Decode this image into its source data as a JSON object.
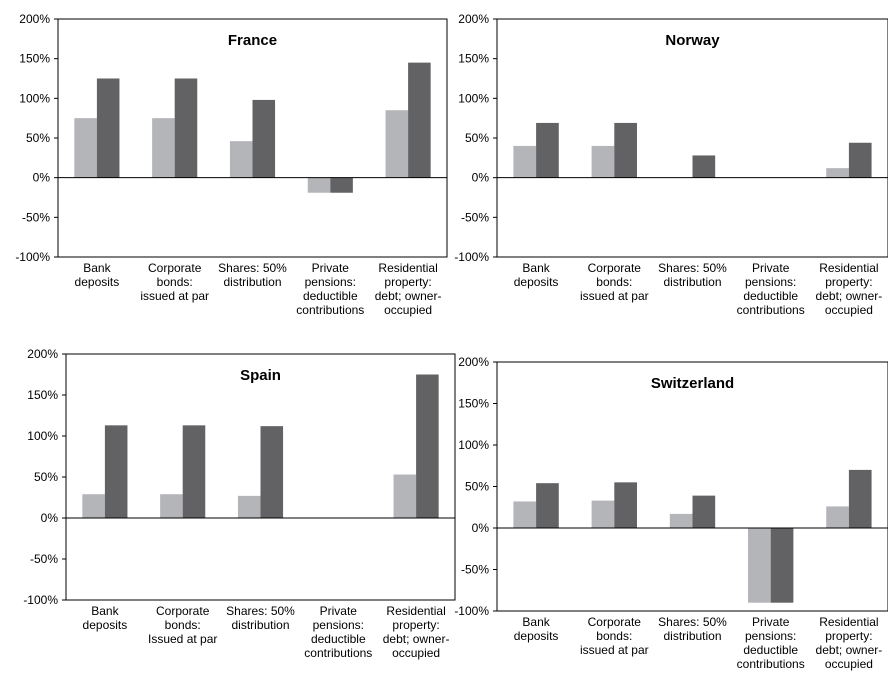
{
  "legend": [],
  "colors": {
    "series_a": "#b4b5b9",
    "series_b": "#626264",
    "axis": "#000000"
  },
  "chart_data": [
    {
      "type": "bar",
      "title": "France",
      "categories": [
        [
          "Bank",
          "deposits"
        ],
        [
          "Corporate",
          "bonds:",
          "issued at par"
        ],
        [
          "Shares: 50%",
          "distribution"
        ],
        [
          "Private",
          "pensions:",
          "deductible",
          "contributions"
        ],
        [
          "Residential",
          "property:",
          "debt; owner-",
          "occupied"
        ]
      ],
      "series": [
        {
          "values": [
            75,
            75,
            46,
            -19,
            85
          ]
        },
        {
          "values": [
            125,
            125,
            98,
            -19,
            145
          ]
        }
      ],
      "ylim": [
        -100,
        200
      ],
      "yticks": [
        "-100%",
        "-50%",
        "0%",
        "50%",
        "100%",
        "150%",
        "200%"
      ],
      "xlabel": "",
      "ylabel": "",
      "grid": false
    },
    {
      "type": "bar",
      "title": "Norway",
      "categories": [
        [
          "Bank",
          "deposits"
        ],
        [
          "Corporate",
          "bonds:",
          "issued at par"
        ],
        [
          "Shares: 50%",
          "distribution"
        ],
        [
          "Private",
          "pensions:",
          "deductible",
          "contributions"
        ],
        [
          "Residential",
          "property:",
          "debt; owner-",
          "occupied"
        ]
      ],
      "series": [
        {
          "values": [
            40,
            40,
            0,
            0,
            12
          ]
        },
        {
          "values": [
            69,
            69,
            28,
            0,
            44
          ]
        }
      ],
      "ylim": [
        -100,
        200
      ],
      "yticks": [
        "-100%",
        "-50%",
        "0%",
        "50%",
        "100%",
        "150%",
        "200%"
      ],
      "xlabel": "",
      "ylabel": "",
      "grid": false
    },
    {
      "type": "bar",
      "title": "Spain",
      "categories": [
        [
          "Bank",
          "deposits"
        ],
        [
          "Corporate",
          "bonds:",
          "Issued at par"
        ],
        [
          "Shares: 50%",
          "distribution"
        ],
        [
          "Private",
          "pensions:",
          "deductible",
          "contributions"
        ],
        [
          "Residential",
          "property:",
          "debt; owner-",
          "occupied"
        ]
      ],
      "series": [
        {
          "values": [
            29,
            29,
            27,
            0,
            53
          ]
        },
        {
          "values": [
            113,
            113,
            112,
            0,
            175
          ]
        }
      ],
      "ylim": [
        -100,
        200
      ],
      "yticks": [
        "-100%",
        "-50%",
        "0%",
        "50%",
        "100%",
        "150%",
        "200%"
      ],
      "xlabel": "",
      "ylabel": "",
      "grid": false
    },
    {
      "type": "bar",
      "title": "Switzerland",
      "categories": [
        [
          "Bank",
          "deposits"
        ],
        [
          "Corporate",
          "bonds:",
          "issued at par"
        ],
        [
          "Shares: 50%",
          "distribution"
        ],
        [
          "Private",
          "pensions:",
          "deductible",
          "contributions"
        ],
        [
          "Residential",
          "property:",
          "debt; owner-",
          "occupied"
        ]
      ],
      "series": [
        {
          "values": [
            32,
            33,
            17,
            -90,
            26
          ]
        },
        {
          "values": [
            54,
            55,
            39,
            -90,
            70
          ]
        }
      ],
      "ylim": [
        -100,
        200
      ],
      "yticks": [
        "-100%",
        "-50%",
        "0%",
        "50%",
        "100%",
        "150%",
        "200%"
      ],
      "xlabel": "",
      "ylabel": "",
      "grid": false
    }
  ]
}
